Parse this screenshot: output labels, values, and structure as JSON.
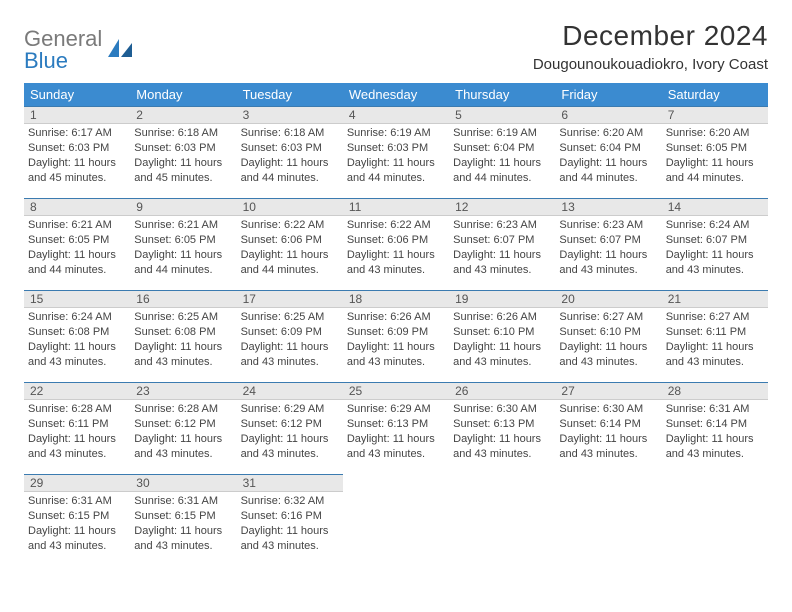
{
  "brand": {
    "part1": "General",
    "part2": "Blue"
  },
  "title": "December 2024",
  "location": "Dougounoukouadiokro, Ivory Coast",
  "labels": {
    "sunrise": "Sunrise: ",
    "sunset": "Sunset: ",
    "daylight_prefix": "Daylight: "
  },
  "colors": {
    "header_bg": "#3b8bd0",
    "header_text": "#ffffff",
    "daynum_bg": "#e8e8e8",
    "daynum_border_top": "#3b7bb0",
    "text": "#444444",
    "brand_gray": "#7a7a7a",
    "brand_blue": "#2b7bbf",
    "page_bg": "#ffffff"
  },
  "typography": {
    "title_fontsize": 28,
    "location_fontsize": 15,
    "weekday_fontsize": 13,
    "cell_fontsize": 11,
    "daynum_fontsize": 12
  },
  "weekdays": [
    "Sunday",
    "Monday",
    "Tuesday",
    "Wednesday",
    "Thursday",
    "Friday",
    "Saturday"
  ],
  "weeks": [
    [
      {
        "n": "1",
        "sunrise": "6:17 AM",
        "sunset": "6:03 PM",
        "dl1": "11 hours",
        "dl2": "and 45 minutes."
      },
      {
        "n": "2",
        "sunrise": "6:18 AM",
        "sunset": "6:03 PM",
        "dl1": "11 hours",
        "dl2": "and 45 minutes."
      },
      {
        "n": "3",
        "sunrise": "6:18 AM",
        "sunset": "6:03 PM",
        "dl1": "11 hours",
        "dl2": "and 44 minutes."
      },
      {
        "n": "4",
        "sunrise": "6:19 AM",
        "sunset": "6:03 PM",
        "dl1": "11 hours",
        "dl2": "and 44 minutes."
      },
      {
        "n": "5",
        "sunrise": "6:19 AM",
        "sunset": "6:04 PM",
        "dl1": "11 hours",
        "dl2": "and 44 minutes."
      },
      {
        "n": "6",
        "sunrise": "6:20 AM",
        "sunset": "6:04 PM",
        "dl1": "11 hours",
        "dl2": "and 44 minutes."
      },
      {
        "n": "7",
        "sunrise": "6:20 AM",
        "sunset": "6:05 PM",
        "dl1": "11 hours",
        "dl2": "and 44 minutes."
      }
    ],
    [
      {
        "n": "8",
        "sunrise": "6:21 AM",
        "sunset": "6:05 PM",
        "dl1": "11 hours",
        "dl2": "and 44 minutes."
      },
      {
        "n": "9",
        "sunrise": "6:21 AM",
        "sunset": "6:05 PM",
        "dl1": "11 hours",
        "dl2": "and 44 minutes."
      },
      {
        "n": "10",
        "sunrise": "6:22 AM",
        "sunset": "6:06 PM",
        "dl1": "11 hours",
        "dl2": "and 44 minutes."
      },
      {
        "n": "11",
        "sunrise": "6:22 AM",
        "sunset": "6:06 PM",
        "dl1": "11 hours",
        "dl2": "and 43 minutes."
      },
      {
        "n": "12",
        "sunrise": "6:23 AM",
        "sunset": "6:07 PM",
        "dl1": "11 hours",
        "dl2": "and 43 minutes."
      },
      {
        "n": "13",
        "sunrise": "6:23 AM",
        "sunset": "6:07 PM",
        "dl1": "11 hours",
        "dl2": "and 43 minutes."
      },
      {
        "n": "14",
        "sunrise": "6:24 AM",
        "sunset": "6:07 PM",
        "dl1": "11 hours",
        "dl2": "and 43 minutes."
      }
    ],
    [
      {
        "n": "15",
        "sunrise": "6:24 AM",
        "sunset": "6:08 PM",
        "dl1": "11 hours",
        "dl2": "and 43 minutes."
      },
      {
        "n": "16",
        "sunrise": "6:25 AM",
        "sunset": "6:08 PM",
        "dl1": "11 hours",
        "dl2": "and 43 minutes."
      },
      {
        "n": "17",
        "sunrise": "6:25 AM",
        "sunset": "6:09 PM",
        "dl1": "11 hours",
        "dl2": "and 43 minutes."
      },
      {
        "n": "18",
        "sunrise": "6:26 AM",
        "sunset": "6:09 PM",
        "dl1": "11 hours",
        "dl2": "and 43 minutes."
      },
      {
        "n": "19",
        "sunrise": "6:26 AM",
        "sunset": "6:10 PM",
        "dl1": "11 hours",
        "dl2": "and 43 minutes."
      },
      {
        "n": "20",
        "sunrise": "6:27 AM",
        "sunset": "6:10 PM",
        "dl1": "11 hours",
        "dl2": "and 43 minutes."
      },
      {
        "n": "21",
        "sunrise": "6:27 AM",
        "sunset": "6:11 PM",
        "dl1": "11 hours",
        "dl2": "and 43 minutes."
      }
    ],
    [
      {
        "n": "22",
        "sunrise": "6:28 AM",
        "sunset": "6:11 PM",
        "dl1": "11 hours",
        "dl2": "and 43 minutes."
      },
      {
        "n": "23",
        "sunrise": "6:28 AM",
        "sunset": "6:12 PM",
        "dl1": "11 hours",
        "dl2": "and 43 minutes."
      },
      {
        "n": "24",
        "sunrise": "6:29 AM",
        "sunset": "6:12 PM",
        "dl1": "11 hours",
        "dl2": "and 43 minutes."
      },
      {
        "n": "25",
        "sunrise": "6:29 AM",
        "sunset": "6:13 PM",
        "dl1": "11 hours",
        "dl2": "and 43 minutes."
      },
      {
        "n": "26",
        "sunrise": "6:30 AM",
        "sunset": "6:13 PM",
        "dl1": "11 hours",
        "dl2": "and 43 minutes."
      },
      {
        "n": "27",
        "sunrise": "6:30 AM",
        "sunset": "6:14 PM",
        "dl1": "11 hours",
        "dl2": "and 43 minutes."
      },
      {
        "n": "28",
        "sunrise": "6:31 AM",
        "sunset": "6:14 PM",
        "dl1": "11 hours",
        "dl2": "and 43 minutes."
      }
    ],
    [
      {
        "n": "29",
        "sunrise": "6:31 AM",
        "sunset": "6:15 PM",
        "dl1": "11 hours",
        "dl2": "and 43 minutes."
      },
      {
        "n": "30",
        "sunrise": "6:31 AM",
        "sunset": "6:15 PM",
        "dl1": "11 hours",
        "dl2": "and 43 minutes."
      },
      {
        "n": "31",
        "sunrise": "6:32 AM",
        "sunset": "6:16 PM",
        "dl1": "11 hours",
        "dl2": "and 43 minutes."
      },
      null,
      null,
      null,
      null
    ]
  ]
}
